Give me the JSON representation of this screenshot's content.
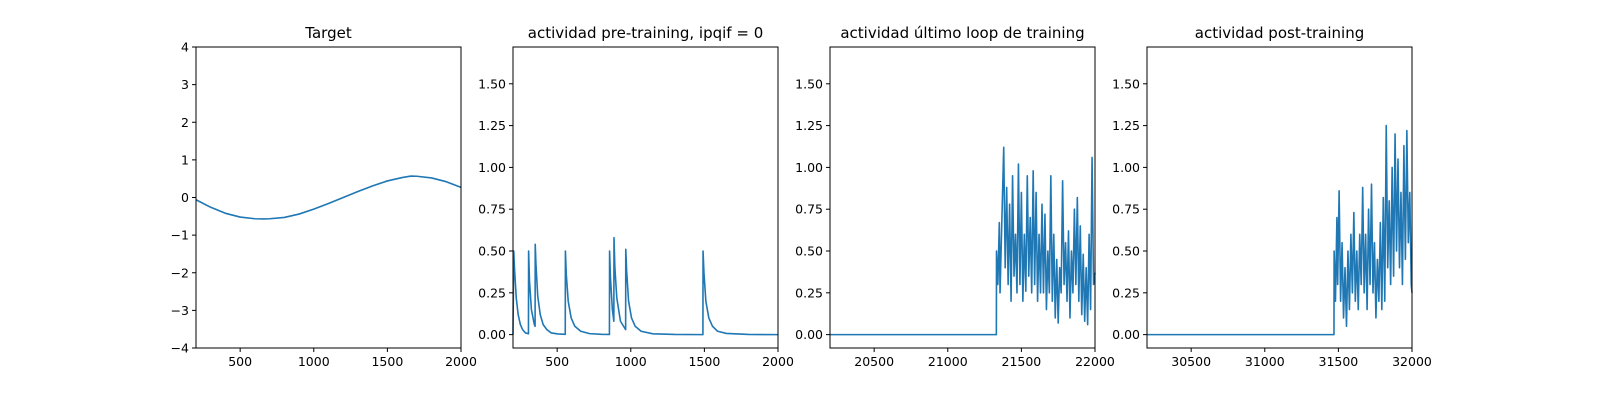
{
  "chart_data": [
    {
      "type": "line",
      "title": "Target",
      "xlabel": "",
      "ylabel": "",
      "xlim": [
        200,
        2000
      ],
      "ylim": [
        -4,
        4
      ],
      "xticks": [
        500,
        1000,
        1500,
        2000
      ],
      "yticks": [
        -4,
        -3,
        -2,
        -1,
        0,
        1,
        2,
        3,
        4
      ],
      "grid": false,
      "color": "#1f77b4",
      "series": [
        {
          "x": [
            200,
            300,
            400,
            500,
            600,
            660,
            700,
            800,
            900,
            1000,
            1100,
            1200,
            1300,
            1400,
            1500,
            1600,
            1660,
            1700,
            1800,
            1900,
            2000
          ],
          "values": [
            -0.06,
            -0.26,
            -0.42,
            -0.52,
            -0.565,
            -0.57,
            -0.565,
            -0.53,
            -0.44,
            -0.31,
            -0.16,
            0.0,
            0.16,
            0.31,
            0.44,
            0.53,
            0.57,
            0.565,
            0.52,
            0.42,
            0.27
          ]
        }
      ]
    },
    {
      "type": "line",
      "title": "actividad pre-training, ipqif = 0",
      "xlabel": "",
      "ylabel": "",
      "xlim": [
        200,
        2000
      ],
      "ylim": [
        -0.08,
        1.72
      ],
      "xticks": [
        500,
        1000,
        1500,
        2000
      ],
      "yticks": [
        0.0,
        0.25,
        0.5,
        0.75,
        1.0,
        1.25,
        1.5
      ],
      "ytick_labels": [
        "0.00",
        "0.25",
        "0.50",
        "0.75",
        "1.00",
        "1.25",
        "1.50"
      ],
      "grid": false,
      "color": "#1f77b4",
      "series": [
        {
          "x": [
            200,
            205,
            210,
            222,
            235,
            250,
            265,
            285,
            305,
            306,
            312,
            325,
            345,
            350,
            351,
            356,
            368,
            385,
            405,
            430,
            460,
            505,
            555,
            556,
            562,
            575,
            595,
            620,
            660,
            720,
            800,
            855,
            856,
            862,
            875,
            885,
            886,
            892,
            905,
            930,
            965,
            966,
            972,
            985,
            1005,
            1030,
            1070,
            1150,
            1300,
            1490,
            1491,
            1497,
            1510,
            1530,
            1555,
            1590,
            1650,
            1800,
            2000
          ],
          "values": [
            0.0,
            0.5,
            0.4,
            0.22,
            0.12,
            0.06,
            0.03,
            0.01,
            0.005,
            0.5,
            0.32,
            0.15,
            0.06,
            0.05,
            0.54,
            0.42,
            0.23,
            0.12,
            0.06,
            0.03,
            0.01,
            0.004,
            0.002,
            0.5,
            0.36,
            0.2,
            0.1,
            0.05,
            0.02,
            0.006,
            0.002,
            0.001,
            0.5,
            0.34,
            0.15,
            0.08,
            0.58,
            0.4,
            0.22,
            0.08,
            0.03,
            0.51,
            0.38,
            0.2,
            0.1,
            0.05,
            0.02,
            0.005,
            0.001,
            0.0,
            0.5,
            0.37,
            0.2,
            0.1,
            0.05,
            0.02,
            0.007,
            0.001,
            0.0
          ]
        }
      ]
    },
    {
      "type": "line",
      "title": "actividad último loop de training",
      "xlabel": "",
      "ylabel": "",
      "xlim": [
        20200,
        22000
      ],
      "ylim": [
        -0.08,
        1.72
      ],
      "xticks": [
        20500,
        21000,
        21500,
        22000
      ],
      "yticks": [
        0.0,
        0.25,
        0.5,
        0.75,
        1.0,
        1.25,
        1.5
      ],
      "ytick_labels": [
        "0.00",
        "0.25",
        "0.50",
        "0.75",
        "1.00",
        "1.25",
        "1.50"
      ],
      "grid": false,
      "color": "#1f77b4",
      "series": [
        {
          "x": [
            20200,
            20800,
            21330,
            21331,
            21340,
            21350,
            21355,
            21365,
            21380,
            21390,
            21400,
            21410,
            21420,
            21430,
            21440,
            21450,
            21460,
            21470,
            21480,
            21490,
            21500,
            21510,
            21520,
            21530,
            21540,
            21550,
            21560,
            21570,
            21580,
            21590,
            21600,
            21610,
            21620,
            21630,
            21640,
            21650,
            21660,
            21670,
            21680,
            21690,
            21700,
            21710,
            21720,
            21730,
            21740,
            21750,
            21760,
            21770,
            21780,
            21790,
            21800,
            21810,
            21820,
            21830,
            21840,
            21850,
            21860,
            21870,
            21880,
            21890,
            21900,
            21910,
            21920,
            21930,
            21940,
            21950,
            21960,
            21970,
            21980,
            21990,
            22000
          ],
          "values": [
            0.0,
            0.0,
            0.0,
            0.5,
            0.3,
            0.67,
            0.25,
            0.6,
            1.12,
            0.4,
            0.88,
            0.3,
            0.78,
            0.2,
            0.95,
            0.35,
            0.6,
            0.25,
            1.02,
            0.3,
            0.85,
            0.2,
            0.6,
            0.26,
            0.95,
            0.35,
            0.7,
            0.25,
            0.98,
            0.3,
            0.85,
            0.2,
            0.6,
            0.25,
            0.78,
            0.25,
            0.72,
            0.15,
            0.5,
            0.25,
            0.95,
            0.2,
            0.6,
            0.1,
            0.45,
            0.07,
            0.4,
            0.25,
            0.92,
            0.3,
            0.55,
            0.2,
            0.62,
            0.1,
            0.5,
            0.25,
            0.75,
            0.3,
            0.82,
            0.2,
            0.65,
            0.12,
            0.48,
            0.08,
            0.4,
            0.06,
            0.6,
            0.15,
            1.06,
            0.3,
            0.37
          ]
        }
      ]
    },
    {
      "type": "line",
      "title": "actividad post-training",
      "xlabel": "",
      "ylabel": "",
      "xlim": [
        30200,
        32000
      ],
      "ylim": [
        -0.08,
        1.72
      ],
      "xticks": [
        30500,
        31000,
        31500,
        32000
      ],
      "yticks": [
        0.0,
        0.25,
        0.5,
        0.75,
        1.0,
        1.25,
        1.5
      ],
      "ytick_labels": [
        "0.00",
        "0.25",
        "0.50",
        "0.75",
        "1.00",
        "1.25",
        "1.50"
      ],
      "grid": false,
      "color": "#1f77b4",
      "series": [
        {
          "x": [
            30200,
            30800,
            31470,
            31471,
            31480,
            31490,
            31495,
            31505,
            31515,
            31525,
            31535,
            31545,
            31555,
            31565,
            31575,
            31585,
            31595,
            31605,
            31615,
            31625,
            31635,
            31645,
            31655,
            31665,
            31675,
            31685,
            31695,
            31705,
            31715,
            31725,
            31735,
            31745,
            31755,
            31765,
            31775,
            31785,
            31795,
            31805,
            31815,
            31825,
            31835,
            31845,
            31855,
            31865,
            31875,
            31885,
            31895,
            31905,
            31915,
            31925,
            31935,
            31945,
            31955,
            31965,
            31975,
            31985,
            31995,
            32000
          ],
          "values": [
            0.0,
            0.0,
            0.0,
            0.5,
            0.2,
            0.7,
            0.3,
            0.86,
            0.2,
            0.55,
            0.1,
            0.4,
            0.05,
            0.5,
            0.15,
            0.6,
            0.25,
            0.73,
            0.2,
            0.5,
            0.15,
            0.6,
            0.3,
            0.88,
            0.25,
            0.6,
            0.15,
            0.75,
            0.3,
            0.9,
            0.25,
            0.55,
            0.1,
            0.45,
            0.2,
            0.67,
            0.15,
            0.82,
            0.2,
            1.25,
            0.4,
            0.8,
            0.3,
            1.0,
            0.35,
            1.2,
            0.5,
            1.05,
            0.4,
            0.85,
            0.3,
            1.13,
            0.45,
            1.22,
            0.55,
            0.85,
            0.3,
            0.25
          ]
        }
      ]
    }
  ]
}
